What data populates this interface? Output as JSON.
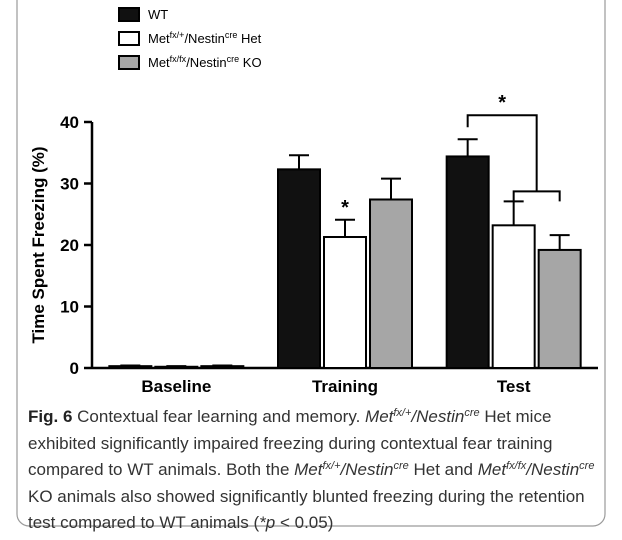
{
  "chart_data": {
    "type": "bar",
    "ylabel": "Time Spent Freezing (%)",
    "categories": [
      "Baseline",
      "Training",
      "Test"
    ],
    "ylim": [
      0,
      40
    ],
    "yticks": [
      0,
      10,
      20,
      30,
      40
    ],
    "series": [
      {
        "name": [
          "WT"
        ],
        "color": "#111111",
        "values": [
          0.3,
          32.3,
          34.4
        ],
        "errors": [
          0.1,
          2.3,
          2.8
        ]
      },
      {
        "name": [
          "Met",
          "fx/+",
          "/Nestin",
          "cre",
          " Het"
        ],
        "name_sup": [
          1,
          3
        ],
        "color": "#ffffff",
        "values": [
          0.2,
          21.3,
          23.2
        ],
        "errors": [
          0.1,
          2.8,
          3.9
        ]
      },
      {
        "name": [
          "Met",
          "fx/fx",
          "/Nestin",
          "cre",
          " KO"
        ],
        "name_sup": [
          1,
          3
        ],
        "color": "#a6a6a6",
        "values": [
          0.3,
          27.4,
          19.2
        ],
        "errors": [
          0.1,
          3.4,
          2.4
        ]
      }
    ],
    "annotations": [
      {
        "text": "*"
      },
      {
        "text": "*"
      }
    ]
  },
  "caption": [
    {
      "text": "Fig. 6",
      "style": "b"
    },
    {
      "text": " Contextual fear learning and memory. "
    },
    {
      "text": "Met",
      "style": "i"
    },
    {
      "text": "fx/+",
      "style": "isup"
    },
    {
      "text": "/Nestin",
      "style": "i"
    },
    {
      "text": "cre",
      "style": "isup"
    },
    {
      "text": " Het mice exhibited significantly impaired freezing during contextual fear training compared to WT animals. Both the "
    },
    {
      "text": "Met",
      "style": "i"
    },
    {
      "text": "fx/+",
      "style": "isup"
    },
    {
      "text": "/Nestin",
      "style": "i"
    },
    {
      "text": "cre",
      "style": "isup"
    },
    {
      "text": " Het and "
    },
    {
      "text": "Met",
      "style": "i"
    },
    {
      "text": "fx/fx",
      "style": "isup"
    },
    {
      "text": "/Nestin",
      "style": "i"
    },
    {
      "text": "cre",
      "style": "isup"
    },
    {
      "text": " KO animals also showed significantly blunted freezing during the retention test compared to WT animals ("
    },
    {
      "text": "*p",
      "style": "i"
    },
    {
      "text": " < 0.05)"
    }
  ]
}
